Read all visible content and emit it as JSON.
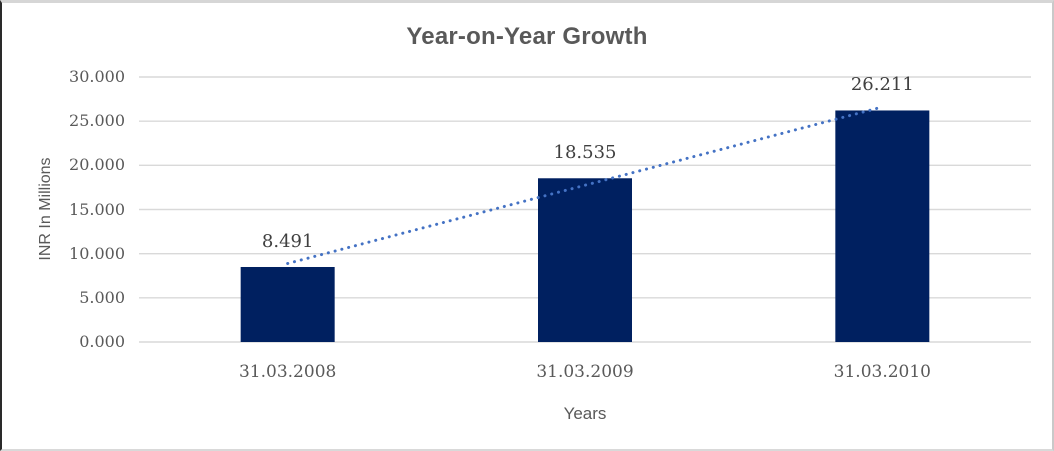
{
  "chart_data": {
    "type": "bar",
    "title": "Year-on-Year Growth",
    "categories": [
      "31.03.2008",
      "31.03.2009",
      "31.03.2010"
    ],
    "values": [
      8.491,
      18.535,
      26.211
    ],
    "data_labels": [
      "8.491",
      "18.535",
      "26.211"
    ],
    "xlabel": "Years",
    "ylabel": "INR In Millions",
    "ylim": [
      0,
      30
    ],
    "ytick_step": 5,
    "yticks": [
      "30.000",
      "25.000",
      "20.000",
      "15.000",
      "10.000",
      "5.000",
      "0.000"
    ],
    "grid": "horizontal",
    "legend": "none",
    "trendline": {
      "type": "linear",
      "style": "dotted",
      "color": "#4472C4"
    },
    "colors": {
      "bar": "#002060",
      "gridline": "#d9d9d9",
      "axis_text": "#595959",
      "data_label_text": "#404040",
      "title_text": "#595959",
      "background": "#ffffff"
    }
  }
}
